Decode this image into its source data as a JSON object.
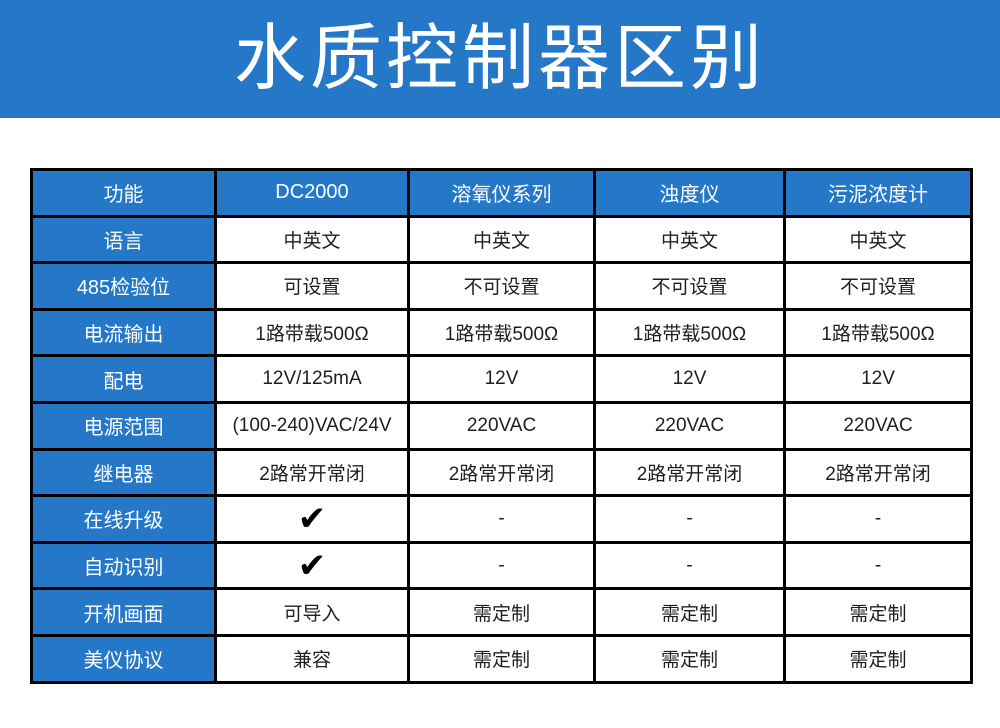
{
  "banner": {
    "title": "水质控制器区别"
  },
  "colors": {
    "primary_blue": "#2577C8",
    "border": "#000000",
    "header_text": "#ffffff",
    "cell_text": "#1f1f1f"
  },
  "table": {
    "header": {
      "feature_column_label": "功能",
      "products": [
        "DC2000",
        "溶氧仪系列",
        "浊度仪",
        "污泥浓度计"
      ]
    },
    "check_symbol": "✔",
    "not_available_symbol": "-",
    "rows": [
      {
        "label": "语言",
        "values": [
          "中英文",
          "中英文",
          "中英文",
          "中英文"
        ]
      },
      {
        "label": "485检验位",
        "values": [
          "可设置",
          "不可设置",
          "不可设置",
          "不可设置"
        ]
      },
      {
        "label": "电流输出",
        "values": [
          "1路带载500Ω",
          "1路带载500Ω",
          "1路带载500Ω",
          "1路带载500Ω"
        ]
      },
      {
        "label": "配电",
        "values": [
          "12V/125mA",
          "12V",
          "12V",
          "12V"
        ]
      },
      {
        "label": "电源范围",
        "values": [
          "(100-240)VAC/24V",
          "220VAC",
          "220VAC",
          "220VAC"
        ]
      },
      {
        "label": "继电器",
        "values": [
          "2路常开常闭",
          "2路常开常闭",
          "2路常开常闭",
          "2路常开常闭"
        ]
      },
      {
        "label": "在线升级",
        "values": [
          "✔",
          "-",
          "-",
          "-"
        ]
      },
      {
        "label": "自动识别",
        "values": [
          "✔",
          "-",
          "-",
          "-"
        ]
      },
      {
        "label": "开机画面",
        "values": [
          "可导入",
          "需定制",
          "需定制",
          "需定制"
        ]
      },
      {
        "label": "美仪协议",
        "values": [
          "兼容",
          "需定制",
          "需定制",
          "需定制"
        ]
      }
    ]
  }
}
